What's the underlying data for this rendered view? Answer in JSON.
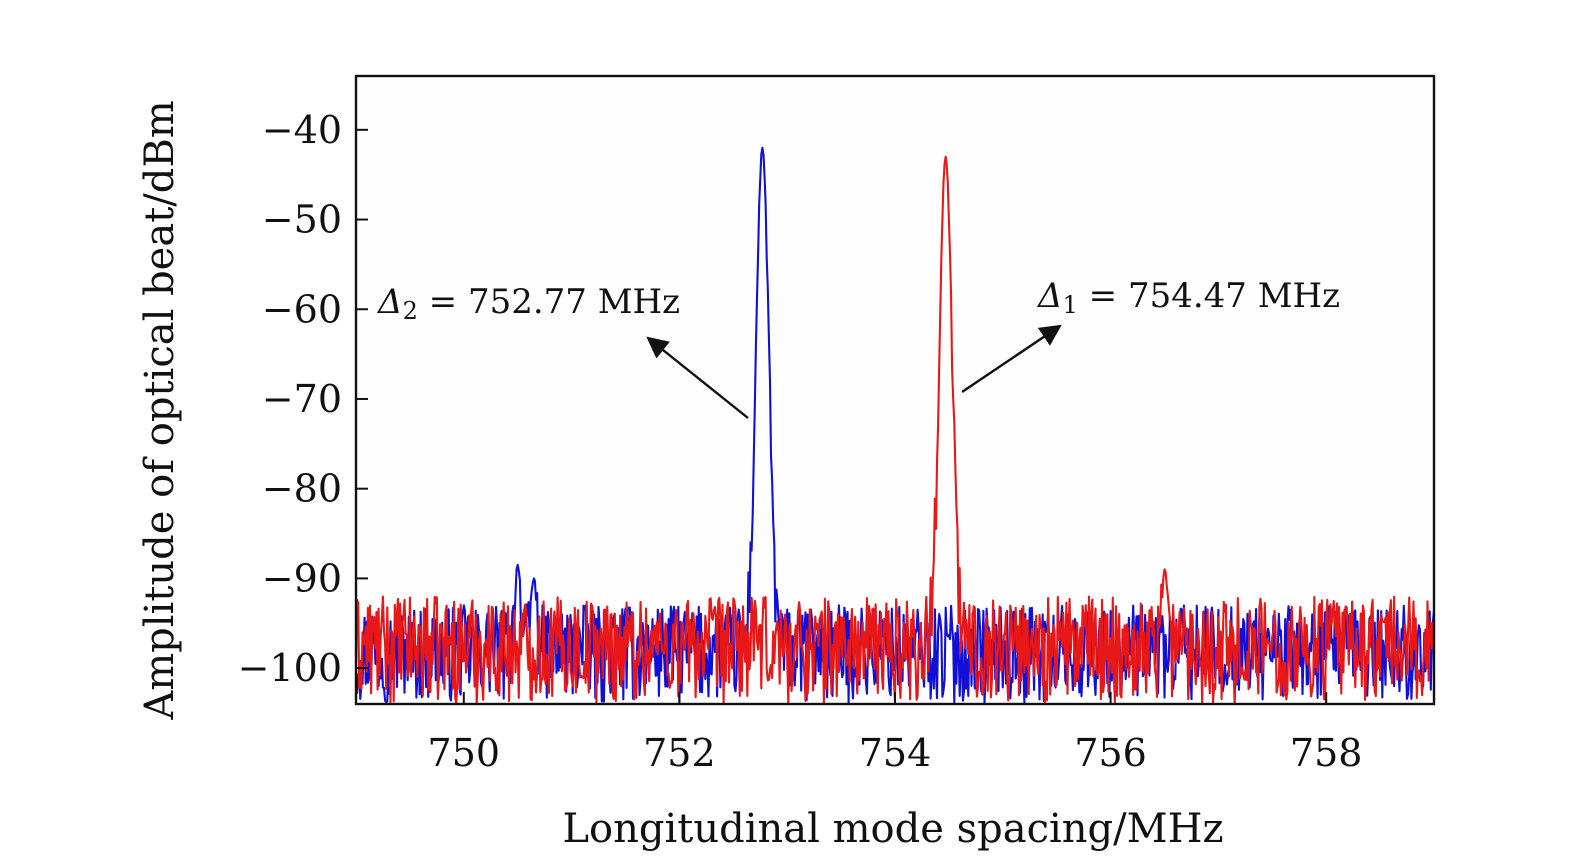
{
  "chart_data": {
    "type": "line",
    "xlabel": "Longitudinal mode spacing/MHz",
    "ylabel": "Amplitude of optical beat/dBm",
    "xlim": [
      749.0,
      759.0
    ],
    "ylim": [
      -104.0,
      -34.0
    ],
    "xticks": [
      750,
      752,
      754,
      756,
      758
    ],
    "xtick_labels": [
      "750",
      "752",
      "754",
      "756",
      "758"
    ],
    "yticks": [
      -40,
      -50,
      -60,
      -70,
      -80,
      -90,
      -100
    ],
    "ytick_labels": [
      "−40",
      "−50",
      "−60",
      "−70",
      "−80",
      "−90",
      "−100"
    ],
    "grid": false,
    "series": [
      {
        "color": "#1010d8",
        "peak_x": 752.77,
        "peak_y": -42,
        "peak_width_mhz": 0.13,
        "noise_floor": [
          -104,
          -93
        ],
        "spurs": [
          {
            "x": 750.5,
            "y": -88.5
          },
          {
            "x": 750.65,
            "y": -90
          }
        ]
      },
      {
        "color": "#e81818",
        "peak_x": 754.47,
        "peak_y": -43,
        "peak_width_mhz": 0.13,
        "noise_floor": [
          -104,
          -92
        ],
        "spurs": [
          {
            "x": 756.5,
            "y": -89
          }
        ]
      }
    ],
    "annotations": [
      {
        "symbol": "Δ",
        "subscript": "2",
        "text": " = 752.77 MHz",
        "series": 0
      },
      {
        "symbol": "Δ",
        "subscript": "1",
        "text": " = 754.47 MHz",
        "series": 1
      }
    ]
  }
}
